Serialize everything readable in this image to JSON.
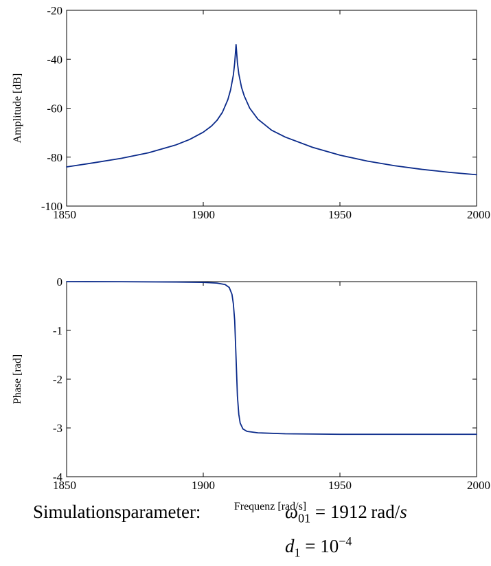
{
  "chart_data": [
    {
      "type": "line",
      "title": "",
      "xlabel": "",
      "ylabel": "Amplitude [dB]",
      "xlim": [
        1850,
        2000
      ],
      "ylim": [
        -100,
        -20
      ],
      "x_ticks": [
        1850,
        1900,
        1950,
        2000
      ],
      "y_ticks": [
        -20,
        -40,
        -60,
        -80,
        -100
      ],
      "x_tick_labels": [
        "1850",
        "1900",
        "1950",
        "2000"
      ],
      "y_tick_labels": [
        "-20",
        "-40",
        "-60",
        "-80",
        "-100"
      ],
      "grid": false,
      "series": [
        {
          "color": "#0a2a8a",
          "x": [
            1850,
            1860,
            1870,
            1880,
            1890,
            1895,
            1900,
            1903,
            1905,
            1907,
            1909,
            1910,
            1911,
            1911.5,
            1912,
            1912.5,
            1913,
            1914,
            1915,
            1917,
            1920,
            1925,
            1930,
            1940,
            1950,
            1960,
            1970,
            1980,
            1990,
            2000
          ],
          "y": [
            -84,
            -82.3,
            -80.5,
            -78.2,
            -75,
            -72.8,
            -69.8,
            -67.3,
            -65,
            -61.7,
            -56.5,
            -52.5,
            -46.5,
            -41.5,
            -34,
            -41.5,
            -46,
            -51.5,
            -55,
            -60,
            -64.5,
            -69,
            -71.8,
            -76,
            -79.2,
            -81.6,
            -83.5,
            -85,
            -86.2,
            -87.2
          ]
        }
      ]
    },
    {
      "type": "line",
      "title": "",
      "xlabel": "Frequenz [rad/s]",
      "ylabel": "Phase [rad]",
      "xlim": [
        1850,
        2000
      ],
      "ylim": [
        -4,
        0
      ],
      "x_ticks": [
        1850,
        1900,
        1950,
        2000
      ],
      "y_ticks": [
        0,
        -1,
        -2,
        -3,
        -4
      ],
      "x_tick_labels": [
        "1850",
        "1900",
        "1950",
        "2000"
      ],
      "y_tick_labels": [
        "0",
        "-1",
        "-2",
        "-3",
        "-4"
      ],
      "grid": false,
      "series": [
        {
          "color": "#0a2a8a",
          "x": [
            1850,
            1870,
            1890,
            1900,
            1905,
            1908,
            1909.5,
            1910.5,
            1911,
            1911.5,
            1912,
            1912.5,
            1913,
            1913.5,
            1914.5,
            1916,
            1920,
            1930,
            1950,
            2000
          ],
          "y": [
            0,
            -0.002,
            -0.008,
            -0.015,
            -0.03,
            -0.06,
            -0.12,
            -0.26,
            -0.45,
            -0.8,
            -1.57,
            -2.35,
            -2.72,
            -2.9,
            -3.02,
            -3.07,
            -3.1,
            -3.12,
            -3.13,
            -3.13
          ]
        }
      ]
    }
  ],
  "parameters": {
    "label": "Simulationsparameter:",
    "omega_symbol": "ω",
    "omega_sub": "01",
    "omega_value": "1912",
    "omega_unit_rad": "rad",
    "omega_unit_s": "s",
    "d_symbol": "d",
    "d_sub": "1",
    "d_base": "10",
    "d_exp": "−4"
  }
}
